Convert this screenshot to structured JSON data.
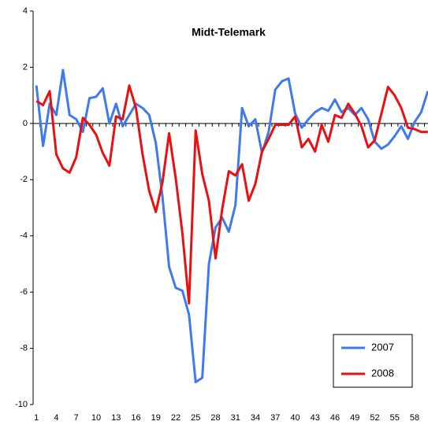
{
  "chart_data": {
    "type": "line",
    "title": "Midt-Telemark",
    "categories": [
      1,
      null,
      null,
      4,
      null,
      null,
      7,
      null,
      null,
      10,
      null,
      null,
      13,
      null,
      null,
      16,
      null,
      null,
      19,
      null,
      null,
      22,
      null,
      null,
      25,
      null,
      null,
      28,
      null,
      null,
      31,
      null,
      null,
      34,
      null,
      null,
      37,
      null,
      null,
      40,
      null,
      null,
      43,
      null,
      null,
      46,
      null,
      null,
      49,
      null,
      null,
      52,
      null,
      null,
      55,
      null,
      null,
      58,
      null,
      null
    ],
    "series": [
      {
        "name": "2007",
        "color": "#3f79f0",
        "values": [
          1.35,
          -0.8,
          0.7,
          0.3,
          1.9,
          0.3,
          0.15,
          -0.3,
          0.9,
          0.95,
          1.25,
          0,
          0.7,
          -0.1,
          0.3,
          0.7,
          0.55,
          0.3,
          -0.7,
          -2.6,
          -5.1,
          -5.85,
          -5.95,
          -6.8,
          -9.2,
          -9.05,
          -5,
          -3.7,
          -3.35,
          -3.85,
          -2.9,
          0.55,
          -0.1,
          0.15,
          -1.05,
          -0.3,
          1.2,
          1.5,
          1.6,
          0.35,
          -0.15,
          0.15,
          0.4,
          0.55,
          0.45,
          0.85,
          0.4,
          0.55,
          0.3,
          0.55,
          0.15,
          -0.65,
          -0.9,
          -0.75,
          -0.45,
          -0.1,
          -0.55,
          0.05,
          0.4,
          1.15
        ]
      },
      {
        "name": "2008",
        "color": "#e81010",
        "values": [
          0.8,
          0.65,
          1.15,
          -1.1,
          -1.6,
          -1.75,
          -1.2,
          0.2,
          -0.05,
          -0.4,
          -1.05,
          -1.5,
          0.25,
          0.15,
          1.35,
          0.55,
          -1.1,
          -2.4,
          -3.15,
          -2.1,
          -0.35,
          -1.95,
          -3.9,
          -6.4,
          -0.25,
          -1.8,
          -2.75,
          -4.8,
          -3.05,
          -1.7,
          -1.85,
          -1.45,
          -2.75,
          -2.15,
          -1.0,
          -0.55,
          -0.05,
          -0.05,
          -0.05,
          0.25,
          -0.85,
          -0.55,
          -1.0,
          -0.05,
          -0.65,
          0.3,
          0.2,
          0.7,
          0.35,
          -0.1,
          -0.85,
          -0.6,
          0.35,
          1.3,
          1.0,
          0.55,
          -0.15,
          -0.2,
          -0.3,
          -0.3
        ]
      }
    ],
    "ylim": [
      -10,
      4
    ],
    "yticks": [
      -10,
      -8,
      -6,
      -4,
      -2,
      0,
      2,
      4
    ]
  }
}
